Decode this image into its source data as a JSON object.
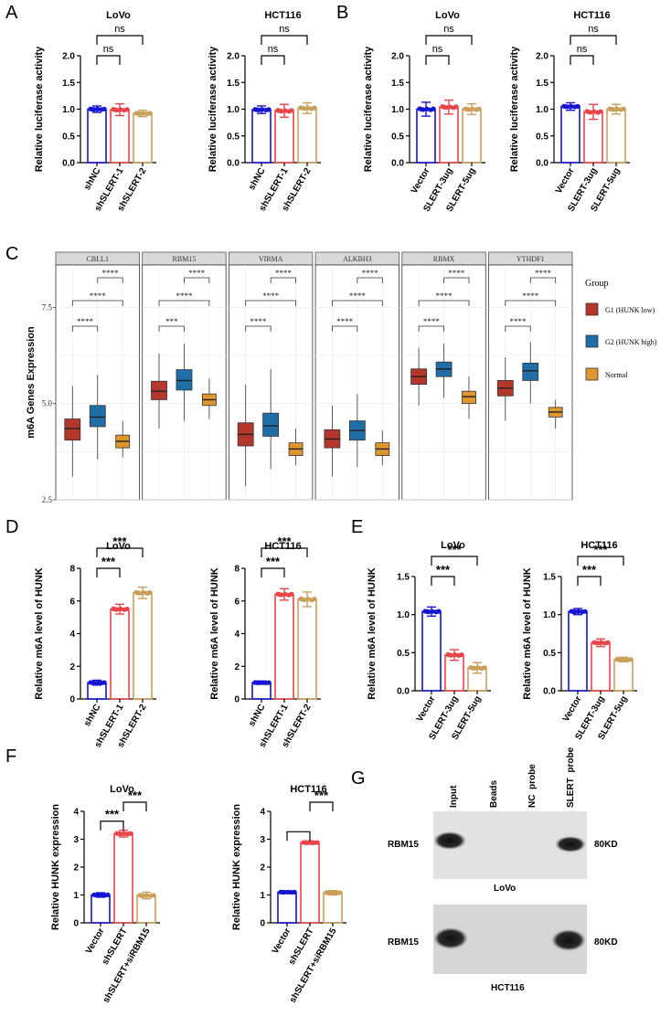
{
  "panel_letters": [
    "A",
    "B",
    "C",
    "D",
    "E",
    "F",
    "G"
  ],
  "colors": {
    "blue": "#1414d2",
    "red": "#e8454a",
    "tan": "#c9a05a",
    "box_g1": "#b5362a",
    "box_g2": "#1f6ea8",
    "box_normal": "#e0962e"
  },
  "chart_data": [
    {
      "id": "A1",
      "panel": "A",
      "type": "bar",
      "title": "LoVo",
      "ylabel": "Relative luciferase activity",
      "categories": [
        "shNC",
        "shSLERT-1",
        "shSLERT-2"
      ],
      "values": [
        1.0,
        0.99,
        0.92
      ],
      "errors": [
        0.06,
        0.11,
        0.06
      ],
      "ylim": [
        0,
        2.0
      ],
      "yticks": [
        "0.0",
        "0.5",
        "1.0",
        "1.5",
        "2.0"
      ],
      "significance": [
        {
          "from": 0,
          "to": 1,
          "label": "ns"
        },
        {
          "from": 0,
          "to": 2,
          "label": "ns"
        }
      ]
    },
    {
      "id": "A2",
      "panel": "A",
      "type": "bar",
      "title": "HCT116",
      "ylabel": "Relative luciferase activity",
      "categories": [
        "shNC",
        "shSLERT-1",
        "shSLERT-2"
      ],
      "values": [
        0.99,
        0.97,
        1.02
      ],
      "errors": [
        0.07,
        0.12,
        0.1
      ],
      "ylim": [
        0,
        2.0
      ],
      "yticks": [
        "0.0",
        "0.5",
        "1.0",
        "1.5",
        "2.0"
      ],
      "significance": [
        {
          "from": 0,
          "to": 1,
          "label": "ns"
        },
        {
          "from": 0,
          "to": 2,
          "label": "ns"
        }
      ]
    },
    {
      "id": "B1",
      "panel": "B",
      "type": "bar",
      "title": "LoVo",
      "ylabel": "Relative luciferase activity",
      "categories": [
        "Vector",
        "SLERT-3ug",
        "SLERT-5ug"
      ],
      "values": [
        1.0,
        1.04,
        1.0
      ],
      "errors": [
        0.13,
        0.13,
        0.1
      ],
      "ylim": [
        0,
        2.0
      ],
      "yticks": [
        "0.0",
        "0.5",
        "1.0",
        "1.5",
        "2.0"
      ],
      "significance": [
        {
          "from": 0,
          "to": 1,
          "label": "ns"
        },
        {
          "from": 0,
          "to": 2,
          "label": "ns"
        }
      ]
    },
    {
      "id": "B2",
      "panel": "B",
      "type": "bar",
      "title": "HCT116",
      "ylabel": "Relative luciferase activity",
      "categories": [
        "Vector",
        "SLERT-3ug",
        "SLERT-5ug"
      ],
      "values": [
        1.05,
        0.95,
        1.0
      ],
      "errors": [
        0.07,
        0.14,
        0.09
      ],
      "ylim": [
        0,
        2.0
      ],
      "yticks": [
        "0.0",
        "0.5",
        "1.0",
        "1.5",
        "2.0"
      ],
      "significance": [
        {
          "from": 0,
          "to": 1,
          "label": "ns"
        },
        {
          "from": 0,
          "to": 2,
          "label": "ns"
        }
      ]
    },
    {
      "id": "D1",
      "panel": "D",
      "type": "bar",
      "title": "LoVo",
      "ylabel": "Relative m6A level of HUNK",
      "categories": [
        "shNC",
        "shSLERT-1",
        "shSLERT-2"
      ],
      "values": [
        1.0,
        5.5,
        6.5
      ],
      "errors": [
        0.15,
        0.3,
        0.35
      ],
      "ylim": [
        0,
        8
      ],
      "yticks": [
        "0",
        "2",
        "4",
        "6",
        "8"
      ],
      "significance": [
        {
          "from": 0,
          "to": 1,
          "label": "***"
        },
        {
          "from": 0,
          "to": 2,
          "label": "***"
        }
      ]
    },
    {
      "id": "D2",
      "panel": "D",
      "type": "bar",
      "title": "HCT116",
      "ylabel": "Relative m6A level of HUNK",
      "categories": [
        "shNC",
        "shSLERT-1",
        "shSLERT-2"
      ],
      "values": [
        1.0,
        6.4,
        6.1
      ],
      "errors": [
        0.1,
        0.35,
        0.45
      ],
      "ylim": [
        0,
        8
      ],
      "yticks": [
        "0",
        "2",
        "4",
        "6",
        "8"
      ],
      "significance": [
        {
          "from": 0,
          "to": 1,
          "label": "***"
        },
        {
          "from": 0,
          "to": 2,
          "label": "***"
        }
      ]
    },
    {
      "id": "E1",
      "panel": "E",
      "type": "bar",
      "title": "LoVo",
      "ylabel": "Relative m6A level of HUNK",
      "categories": [
        "Vector",
        "SLERT-3ug",
        "SLERT-5ug"
      ],
      "values": [
        1.04,
        0.47,
        0.3
      ],
      "errors": [
        0.06,
        0.07,
        0.07
      ],
      "ylim": [
        0,
        1.5
      ],
      "yticks": [
        "0.0",
        "0.5",
        "1.0",
        "1.5"
      ],
      "significance": [
        {
          "from": 0,
          "to": 1,
          "label": "***"
        },
        {
          "from": 0,
          "to": 2,
          "label": "***"
        }
      ]
    },
    {
      "id": "E2",
      "panel": "E",
      "type": "bar",
      "title": "HCT116",
      "ylabel": "Relative m6A level of HUNK",
      "categories": [
        "Vector",
        "SLERT-3ug",
        "SLERT-5ug"
      ],
      "values": [
        1.04,
        0.63,
        0.41
      ],
      "errors": [
        0.04,
        0.05,
        0.03
      ],
      "ylim": [
        0,
        1.5
      ],
      "yticks": [
        "0.0",
        "0.5",
        "1.0",
        "1.5"
      ],
      "significance": [
        {
          "from": 0,
          "to": 1,
          "label": "***"
        },
        {
          "from": 0,
          "to": 2,
          "label": "***"
        }
      ]
    },
    {
      "id": "F1",
      "panel": "F",
      "type": "bar",
      "title": "LoVo",
      "ylabel": "Relative HUNK expression",
      "categories": [
        "Vector",
        "shSLERT",
        "shSLERT+siRBM15"
      ],
      "values": [
        1.0,
        3.2,
        0.98
      ],
      "errors": [
        0.08,
        0.12,
        0.12
      ],
      "ylim": [
        0,
        4
      ],
      "yticks": [
        "0",
        "1",
        "2",
        "3",
        "4"
      ],
      "significance": [
        {
          "from": 0,
          "to": 1,
          "label": "***"
        },
        {
          "from": 1,
          "to": 2,
          "label": "***"
        }
      ]
    },
    {
      "id": "F2",
      "panel": "F",
      "type": "bar",
      "title": "HCT116",
      "ylabel": "Relative HUNK expression",
      "categories": [
        "Vector",
        "shSLERT",
        "shSLERT+siRBM15"
      ],
      "values": [
        1.1,
        2.88,
        1.08
      ],
      "errors": [
        0.05,
        0.06,
        0.08
      ],
      "ylim": [
        0,
        4
      ],
      "yticks": [
        "0",
        "1",
        "2",
        "3",
        "4"
      ],
      "significance": [
        {
          "from": 0,
          "to": 1,
          "label": ""
        },
        {
          "from": 1,
          "to": 2,
          "label": "***"
        }
      ]
    },
    {
      "id": "C",
      "panel": "C",
      "type": "boxplot",
      "ylabel": "m6A Genes Expression",
      "ylim": [
        2.5,
        8.6
      ],
      "yticks": [
        "2.5",
        "5.0",
        "7.5"
      ],
      "facets": [
        {
          "name": "CBLL1",
          "groups": [
            {
              "q1": 4.05,
              "med": 4.35,
              "q3": 4.6,
              "lo": 3.1,
              "hi": 5.45
            },
            {
              "q1": 4.4,
              "med": 4.65,
              "q3": 4.95,
              "lo": 3.55,
              "hi": 5.75
            },
            {
              "q1": 3.85,
              "med": 4.02,
              "q3": 4.18,
              "lo": 3.6,
              "hi": 4.55
            }
          ]
        },
        {
          "name": "RBM15",
          "groups": [
            {
              "q1": 5.1,
              "med": 5.32,
              "q3": 5.58,
              "lo": 4.35,
              "hi": 6.3
            },
            {
              "q1": 5.35,
              "med": 5.6,
              "q3": 5.88,
              "lo": 4.55,
              "hi": 6.55
            },
            {
              "q1": 4.95,
              "med": 5.1,
              "q3": 5.25,
              "lo": 4.6,
              "hi": 5.65
            }
          ]
        },
        {
          "name": "VIRMA",
          "groups": [
            {
              "q1": 3.9,
              "med": 4.2,
              "q3": 4.5,
              "lo": 2.85,
              "hi": 5.5
            },
            {
              "q1": 4.15,
              "med": 4.42,
              "q3": 4.75,
              "lo": 3.3,
              "hi": 5.9
            },
            {
              "q1": 3.65,
              "med": 3.82,
              "q3": 3.98,
              "lo": 3.4,
              "hi": 4.35
            }
          ]
        },
        {
          "name": "ALKBH3",
          "groups": [
            {
              "q1": 3.85,
              "med": 4.08,
              "q3": 4.32,
              "lo": 3.1,
              "hi": 4.95
            },
            {
              "q1": 4.05,
              "med": 4.3,
              "q3": 4.55,
              "lo": 3.35,
              "hi": 5.25
            },
            {
              "q1": 3.65,
              "med": 3.82,
              "q3": 3.98,
              "lo": 3.4,
              "hi": 4.3
            }
          ]
        },
        {
          "name": "RBMX",
          "groups": [
            {
              "q1": 5.5,
              "med": 5.7,
              "q3": 5.9,
              "lo": 4.95,
              "hi": 6.45
            },
            {
              "q1": 5.7,
              "med": 5.9,
              "q3": 6.08,
              "lo": 5.15,
              "hi": 6.55
            },
            {
              "q1": 5.0,
              "med": 5.18,
              "q3": 5.32,
              "lo": 4.6,
              "hi": 5.7
            }
          ]
        },
        {
          "name": "YTHDF1",
          "groups": [
            {
              "q1": 5.2,
              "med": 5.4,
              "q3": 5.6,
              "lo": 4.55,
              "hi": 6.2
            },
            {
              "q1": 5.6,
              "med": 5.85,
              "q3": 6.05,
              "lo": 5.0,
              "hi": 6.6
            },
            {
              "q1": 4.65,
              "med": 4.78,
              "q3": 4.9,
              "lo": 4.35,
              "hi": 5.1
            }
          ]
        }
      ],
      "significance_rows": [
        [
          "****",
          "****",
          "****",
          "****",
          "****",
          "****"
        ],
        [
          "****",
          "****",
          "****",
          "****",
          "****",
          "****"
        ],
        [
          "****",
          "***",
          "****",
          "****",
          "****",
          "****"
        ]
      ],
      "legend": {
        "title": "Group",
        "entries": [
          "G1 (HUNK low)",
          "G2 (HUNK high)",
          "Normal"
        ]
      }
    }
  ],
  "blot": {
    "lanes": [
      "Input",
      "Beads",
      "NC  probe",
      "SLERT  probe"
    ],
    "rows": [
      {
        "protein": "RBM15",
        "size": "80KD",
        "cell": "LoVo"
      },
      {
        "protein": "RBM15",
        "size": "80KD",
        "cell": "HCT116"
      }
    ]
  }
}
